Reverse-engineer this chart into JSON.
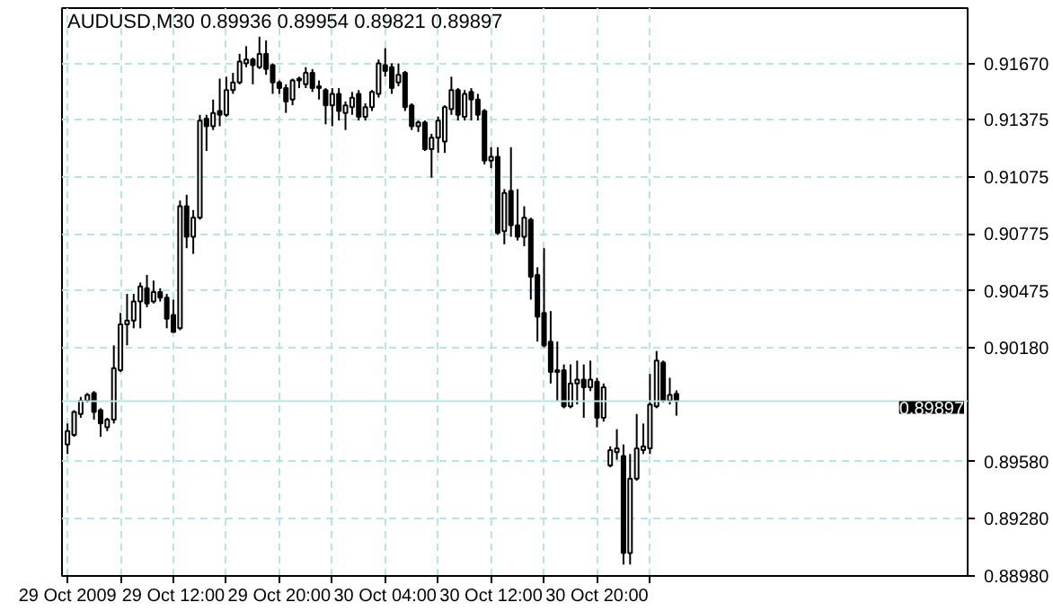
{
  "chart_data": {
    "type": "candlestick",
    "title": "AUDUSD,M30  0.89936 0.89954 0.89821 0.89897",
    "color": "#000000",
    "grid": true,
    "x": [
      "2009-10-29T04:00",
      "2009-10-29T04:30",
      "2009-10-29T05:00",
      "2009-10-29T05:30",
      "2009-10-29T06:00",
      "2009-10-29T06:30",
      "2009-10-29T07:00",
      "2009-10-29T07:30",
      "2009-10-29T08:00",
      "2009-10-29T08:30",
      "2009-10-29T09:00",
      "2009-10-29T09:30",
      "2009-10-29T10:00",
      "2009-10-29T10:30",
      "2009-10-29T11:00",
      "2009-10-29T11:30",
      "2009-10-29T12:00",
      "2009-10-29T12:30",
      "2009-10-29T13:00",
      "2009-10-29T13:30",
      "2009-10-29T14:00",
      "2009-10-29T14:30",
      "2009-10-29T15:00",
      "2009-10-29T15:30",
      "2009-10-29T16:00",
      "2009-10-29T16:30",
      "2009-10-29T17:00",
      "2009-10-29T17:30",
      "2009-10-29T18:00",
      "2009-10-29T18:30",
      "2009-10-29T19:00",
      "2009-10-29T19:30",
      "2009-10-29T20:00",
      "2009-10-29T20:30",
      "2009-10-29T21:00",
      "2009-10-29T21:30",
      "2009-10-29T22:00",
      "2009-10-29T22:30",
      "2009-10-29T23:00",
      "2009-10-29T23:30",
      "2009-10-30T00:00",
      "2009-10-30T00:30",
      "2009-10-30T01:00",
      "2009-10-30T01:30",
      "2009-10-30T02:00",
      "2009-10-30T02:30",
      "2009-10-30T03:00",
      "2009-10-30T03:30",
      "2009-10-30T04:00",
      "2009-10-30T04:30",
      "2009-10-30T05:00",
      "2009-10-30T05:30",
      "2009-10-30T06:00",
      "2009-10-30T06:30",
      "2009-10-30T07:00",
      "2009-10-30T07:30",
      "2009-10-30T08:00",
      "2009-10-30T08:30",
      "2009-10-30T09:00",
      "2009-10-30T09:30",
      "2009-10-30T10:00",
      "2009-10-30T10:30",
      "2009-10-30T11:00",
      "2009-10-30T11:30",
      "2009-10-30T12:00",
      "2009-10-30T12:30",
      "2009-10-30T13:00",
      "2009-10-30T13:30",
      "2009-10-30T14:00",
      "2009-10-30T14:30",
      "2009-10-30T15:00",
      "2009-10-30T15:30",
      "2009-10-30T16:00",
      "2009-10-30T16:30",
      "2009-10-30T17:00",
      "2009-10-30T17:30",
      "2009-10-30T18:00",
      "2009-10-30T18:30",
      "2009-10-30T19:00",
      "2009-10-30T19:30",
      "2009-10-30T20:00",
      "2009-10-30T20:30",
      "2009-10-30T21:00",
      "2009-10-30T21:30",
      "2009-10-30T22:00",
      "2009-10-30T22:30",
      "2009-10-30T23:00",
      "2009-10-30T23:30",
      "2009-10-31T00:00",
      "2009-10-31T00:30",
      "2009-10-31T01:00",
      "2009-10-31T01:30",
      "2009-10-31T02:00"
    ],
    "ohlc": [
      [
        0.8967,
        0.8978,
        0.8962,
        0.8974
      ],
      [
        0.8972,
        0.8985,
        0.8971,
        0.8984
      ],
      [
        0.8983,
        0.8992,
        0.8981,
        0.899
      ],
      [
        0.899,
        0.8994,
        0.8989,
        0.8993
      ],
      [
        0.8994,
        0.8995,
        0.898,
        0.8984
      ],
      [
        0.8985,
        0.8986,
        0.8971,
        0.8978
      ],
      [
        0.8976,
        0.8981,
        0.8974,
        0.898
      ],
      [
        0.898,
        0.9019,
        0.8978,
        0.9007
      ],
      [
        0.9006,
        0.9036,
        0.9005,
        0.903
      ],
      [
        0.903,
        0.9046,
        0.9019,
        0.9032
      ],
      [
        0.9032,
        0.9046,
        0.9028,
        0.9042
      ],
      [
        0.9042,
        0.9052,
        0.9028,
        0.905
      ],
      [
        0.9049,
        0.9056,
        0.9039,
        0.9041
      ],
      [
        0.9042,
        0.9053,
        0.9041,
        0.9047
      ],
      [
        0.9047,
        0.9049,
        0.9042,
        0.9044
      ],
      [
        0.9044,
        0.9046,
        0.9028,
        0.9033
      ],
      [
        0.9035,
        0.9043,
        0.9026,
        0.9026
      ],
      [
        0.9028,
        0.9095,
        0.9027,
        0.9092
      ],
      [
        0.9092,
        0.9098,
        0.907,
        0.9076
      ],
      [
        0.9076,
        0.909,
        0.9067,
        0.9086
      ],
      [
        0.9086,
        0.914,
        0.9085,
        0.9137
      ],
      [
        0.9138,
        0.914,
        0.9121,
        0.9134
      ],
      [
        0.9134,
        0.9148,
        0.9132,
        0.9141
      ],
      [
        0.9142,
        0.9159,
        0.9134,
        0.914
      ],
      [
        0.914,
        0.916,
        0.9139,
        0.9153
      ],
      [
        0.9153,
        0.9162,
        0.9151,
        0.9157
      ],
      [
        0.9157,
        0.9172,
        0.9156,
        0.9168
      ],
      [
        0.9167,
        0.9176,
        0.9165,
        0.9169
      ],
      [
        0.9169,
        0.917,
        0.9156,
        0.9166
      ],
      [
        0.9165,
        0.9181,
        0.9164,
        0.9172
      ],
      [
        0.9172,
        0.9179,
        0.9161,
        0.9164
      ],
      [
        0.9166,
        0.9167,
        0.9151,
        0.9157
      ],
      [
        0.9157,
        0.9158,
        0.9151,
        0.9154
      ],
      [
        0.9154,
        0.9156,
        0.9141,
        0.9147
      ],
      [
        0.9148,
        0.9159,
        0.9145,
        0.9158
      ],
      [
        0.9158,
        0.916,
        0.9154,
        0.9159
      ],
      [
        0.9156,
        0.9165,
        0.9154,
        0.9162
      ],
      [
        0.9162,
        0.9164,
        0.9152,
        0.9154
      ],
      [
        0.9155,
        0.9158,
        0.9148,
        0.9154
      ],
      [
        0.9153,
        0.9154,
        0.9135,
        0.9145
      ],
      [
        0.9145,
        0.9154,
        0.9134,
        0.9151
      ],
      [
        0.9151,
        0.9154,
        0.9137,
        0.9142
      ],
      [
        0.9141,
        0.9147,
        0.9132,
        0.9145
      ],
      [
        0.9144,
        0.9152,
        0.914,
        0.9149
      ],
      [
        0.9151,
        0.9153,
        0.9137,
        0.9139
      ],
      [
        0.9139,
        0.9146,
        0.9137,
        0.9144
      ],
      [
        0.9144,
        0.9153,
        0.9142,
        0.9152
      ],
      [
        0.9151,
        0.9169,
        0.9149,
        0.9167
      ],
      [
        0.9166,
        0.9175,
        0.916,
        0.9163
      ],
      [
        0.9165,
        0.9167,
        0.9151,
        0.9154
      ],
      [
        0.9157,
        0.9167,
        0.9155,
        0.9161
      ],
      [
        0.9162,
        0.9163,
        0.9142,
        0.9144
      ],
      [
        0.9145,
        0.9146,
        0.9132,
        0.9134
      ],
      [
        0.9134,
        0.9137,
        0.9131,
        0.9136
      ],
      [
        0.9136,
        0.9137,
        0.9121,
        0.9122
      ],
      [
        0.9122,
        0.913,
        0.9107,
        0.9128
      ],
      [
        0.9128,
        0.9139,
        0.912,
        0.9137
      ],
      [
        0.9126,
        0.9145,
        0.912,
        0.9144
      ],
      [
        0.9143,
        0.916,
        0.914,
        0.9153
      ],
      [
        0.9153,
        0.9154,
        0.9137,
        0.914
      ],
      [
        0.9139,
        0.9153,
        0.9137,
        0.9151
      ],
      [
        0.9152,
        0.9154,
        0.9137,
        0.9148
      ],
      [
        0.9148,
        0.9151,
        0.9137,
        0.914
      ],
      [
        0.9142,
        0.9143,
        0.9114,
        0.9116
      ],
      [
        0.9116,
        0.9123,
        0.9112,
        0.9118
      ],
      [
        0.9118,
        0.9123,
        0.9077,
        0.9078
      ],
      [
        0.9079,
        0.9101,
        0.9072,
        0.9099
      ],
      [
        0.91,
        0.9123,
        0.9076,
        0.9082
      ],
      [
        0.9082,
        0.9101,
        0.9074,
        0.9076
      ],
      [
        0.9076,
        0.9092,
        0.9071,
        0.9086
      ],
      [
        0.9085,
        0.9086,
        0.9043,
        0.9055
      ],
      [
        0.9056,
        0.906,
        0.9021,
        0.9034
      ],
      [
        0.9036,
        0.907,
        0.9018,
        0.9019
      ],
      [
        0.9021,
        0.9037,
        0.8999,
        0.9005
      ],
      [
        0.9006,
        0.9021,
        0.899,
        0.9005
      ],
      [
        0.9006,
        0.9009,
        0.8986,
        0.8987
      ],
      [
        0.8987,
        0.9009,
        0.8986,
        0.8999
      ],
      [
        0.8999,
        0.9011,
        0.8988,
        0.9001
      ],
      [
        0.9001,
        0.9009,
        0.8981,
        0.8997
      ],
      [
        0.8997,
        0.9011,
        0.8995,
        0.9001
      ],
      [
        0.9,
        0.9002,
        0.8976,
        0.8981
      ],
      [
        0.8981,
        0.8999,
        0.8979,
        0.8997
      ],
      [
        0.8956,
        0.8966,
        0.8955,
        0.8964
      ],
      [
        0.8963,
        0.8975,
        0.8959,
        0.8965
      ],
      [
        0.8961,
        0.8967,
        0.8904,
        0.891
      ],
      [
        0.891,
        0.8962,
        0.8904,
        0.8949
      ],
      [
        0.8949,
        0.8983,
        0.8948,
        0.8965
      ],
      [
        0.8964,
        0.8978,
        0.8962,
        0.8966
      ],
      [
        0.8965,
        0.9004,
        0.8962,
        0.8988
      ],
      [
        0.8987,
        0.9016,
        0.8986,
        0.9011
      ],
      [
        0.901,
        0.9011,
        0.8989,
        0.899
      ],
      [
        0.899,
        0.9002,
        0.8988,
        0.8993
      ],
      [
        0.89936,
        0.89954,
        0.89821,
        0.89897
      ]
    ],
    "xlim": [
      "2009-10-29T03:35",
      "2009-11-01T00:00"
    ],
    "xticks": [
      {
        "value": "2009-10-29T04:00",
        "label": "29 Oct 2009"
      },
      {
        "value": "2009-10-29T08:00",
        "label": null
      },
      {
        "value": "2009-10-29T12:00",
        "label": "29 Oct 12:00"
      },
      {
        "value": "2009-10-29T16:00",
        "label": null
      },
      {
        "value": "2009-10-29T20:00",
        "label": "29 Oct 20:00"
      },
      {
        "value": "2009-10-30T00:00",
        "label": null
      },
      {
        "value": "2009-10-30T04:00",
        "label": "30 Oct 04:00"
      },
      {
        "value": "2009-10-30T08:00",
        "label": null
      },
      {
        "value": "2009-10-30T12:00",
        "label": "30 Oct 12:00"
      },
      {
        "value": "2009-10-30T16:00",
        "label": null
      },
      {
        "value": "2009-10-30T20:00",
        "label": "30 Oct 20:00"
      },
      {
        "value": "2009-10-31T00:00",
        "label": null
      }
    ],
    "ylim": [
      0.8898,
      0.9196
    ],
    "yticks": [
      {
        "value": 0.8898,
        "label": "0.88980"
      },
      {
        "value": 0.8928,
        "label": "0.89280"
      },
      {
        "value": 0.8958,
        "label": "0.89580"
      },
      {
        "value": 0.9018,
        "label": "0.90180"
      },
      {
        "value": 0.90475,
        "label": "0.90475"
      },
      {
        "value": 0.90775,
        "label": "0.90775"
      },
      {
        "value": 0.91075,
        "label": "0.91075"
      },
      {
        "value": 0.91375,
        "label": "0.91375"
      },
      {
        "value": 0.9167,
        "label": "0.91670"
      }
    ],
    "ref_lines": [
      {
        "axis": "y",
        "value": 0.89897,
        "label": "0.89897",
        "color": "#b4e6e6"
      }
    ]
  }
}
